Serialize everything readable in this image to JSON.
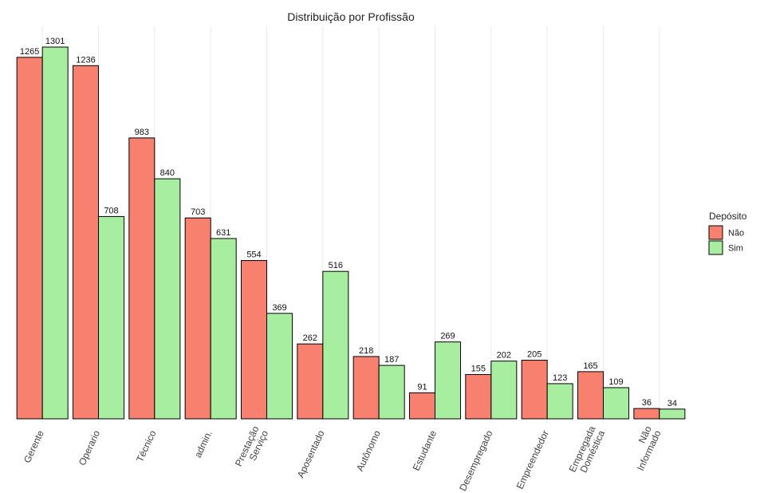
{
  "chart_data": {
    "type": "bar",
    "title": "Distribuição por Profissão",
    "xlabel": "",
    "ylabel": "",
    "categories": [
      [
        "Gerente"
      ],
      [
        "Operario"
      ],
      [
        "Técnico"
      ],
      [
        "admin."
      ],
      [
        "Prestação",
        "Serviço"
      ],
      [
        "Aposentado"
      ],
      [
        "Autônomo"
      ],
      [
        "Estudante"
      ],
      [
        "Desempregado"
      ],
      [
        "Empreendedor"
      ],
      [
        "Empregada",
        "Doméstica"
      ],
      [
        "Não",
        "Informado"
      ]
    ],
    "series": [
      {
        "name": "Não",
        "color": "#f8806f",
        "values": [
          1265,
          1236,
          983,
          703,
          554,
          262,
          218,
          91,
          155,
          205,
          165,
          36
        ]
      },
      {
        "name": "Sim",
        "color": "#a8eea1",
        "values": [
          1301,
          708,
          840,
          631,
          369,
          516,
          187,
          269,
          202,
          123,
          109,
          34
        ]
      }
    ],
    "ylim": [
      0,
      1301
    ],
    "grid": true,
    "legend": {
      "title": "Depósito",
      "position": "right"
    }
  }
}
